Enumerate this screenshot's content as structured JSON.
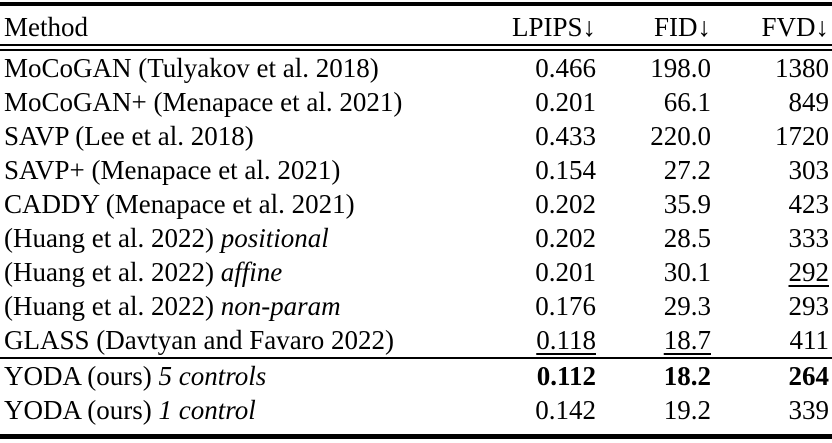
{
  "table": {
    "headers": {
      "method": "Method",
      "lpips": "LPIPS↓",
      "fid": "FID↓",
      "fvd": "FVD↓"
    },
    "rows": [
      {
        "method": "MoCoGAN (Tulyakov et al. 2018)",
        "variant": "",
        "lpips": "0.466",
        "fid": "198.0",
        "fvd": "1380",
        "styles": {
          "lpips": "plain",
          "fid": "plain",
          "fvd": "plain"
        },
        "rule_above": false
      },
      {
        "method": "MoCoGAN+ (Menapace et al. 2021)",
        "variant": "",
        "lpips": "0.201",
        "fid": "66.1",
        "fvd": "849",
        "styles": {
          "lpips": "plain",
          "fid": "plain",
          "fvd": "plain"
        },
        "rule_above": false
      },
      {
        "method": "SAVP (Lee et al. 2018)",
        "variant": "",
        "lpips": "0.433",
        "fid": "220.0",
        "fvd": "1720",
        "styles": {
          "lpips": "plain",
          "fid": "plain",
          "fvd": "plain"
        },
        "rule_above": false
      },
      {
        "method": "SAVP+ (Menapace et al. 2021)",
        "variant": "",
        "lpips": "0.154",
        "fid": "27.2",
        "fvd": "303",
        "styles": {
          "lpips": "plain",
          "fid": "plain",
          "fvd": "plain"
        },
        "rule_above": false
      },
      {
        "method": "CADDY (Menapace et al. 2021)",
        "variant": "",
        "lpips": "0.202",
        "fid": "35.9",
        "fvd": "423",
        "styles": {
          "lpips": "plain",
          "fid": "plain",
          "fvd": "plain"
        },
        "rule_above": false
      },
      {
        "method": "(Huang et al. 2022)",
        "variant": "positional",
        "lpips": "0.202",
        "fid": "28.5",
        "fvd": "333",
        "styles": {
          "lpips": "plain",
          "fid": "plain",
          "fvd": "plain"
        },
        "rule_above": false
      },
      {
        "method": "(Huang et al. 2022)",
        "variant": "affine",
        "lpips": "0.201",
        "fid": "30.1",
        "fvd": "292",
        "styles": {
          "lpips": "plain",
          "fid": "plain",
          "fvd": "underline"
        },
        "rule_above": false
      },
      {
        "method": "(Huang et al. 2022)",
        "variant": "non-param",
        "lpips": "0.176",
        "fid": "29.3",
        "fvd": "293",
        "styles": {
          "lpips": "plain",
          "fid": "plain",
          "fvd": "plain"
        },
        "rule_above": false
      },
      {
        "method": "GLASS (Davtyan and Favaro 2022)",
        "variant": "",
        "lpips": "0.118",
        "fid": "18.7",
        "fvd": "411",
        "styles": {
          "lpips": "underline",
          "fid": "underline",
          "fvd": "plain"
        },
        "rule_above": false
      },
      {
        "method": "YODA (ours)",
        "variant": "5 controls",
        "lpips": "0.112",
        "fid": "18.2",
        "fvd": "264",
        "styles": {
          "lpips": "bold",
          "fid": "bold",
          "fvd": "bold"
        },
        "rule_above": true
      },
      {
        "method": "YODA (ours)",
        "variant": "1 control",
        "lpips": "0.142",
        "fid": "19.2",
        "fvd": "339",
        "styles": {
          "lpips": "plain",
          "fid": "plain",
          "fvd": "plain"
        },
        "rule_above": false
      }
    ]
  }
}
